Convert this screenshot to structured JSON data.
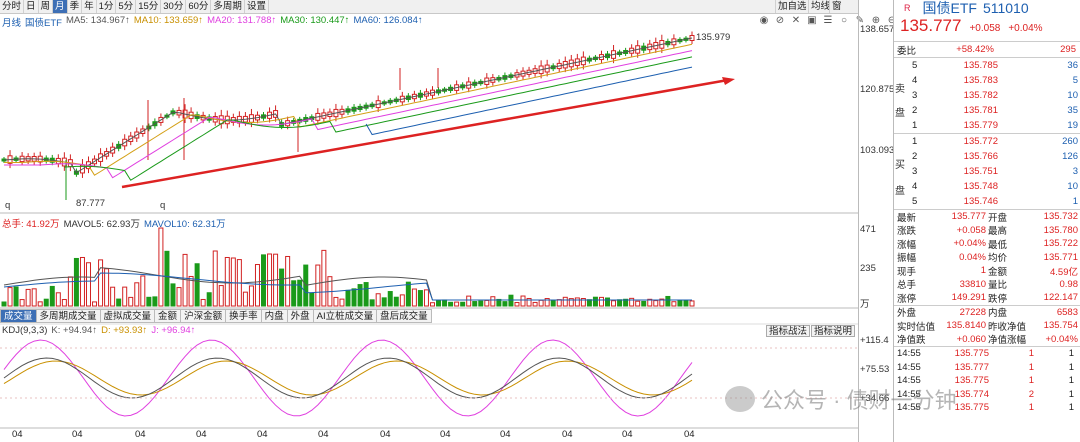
{
  "toolbar": {
    "items": [
      "分时",
      "日",
      "周",
      "月",
      "季",
      "年",
      "1分",
      "5分",
      "15分",
      "30分",
      "60分",
      "多周期",
      "设置"
    ],
    "active": "月",
    "right": [
      "加自选",
      "均线",
      "窗"
    ]
  },
  "ma": {
    "period": "月线",
    "name": "国债ETF",
    "ma5": "MA5: 134.967↑",
    "ma10": "MA10: 133.659↑",
    "ma20": "MA20: 131.788↑",
    "ma30": "MA30: 130.447↑",
    "ma60": "MA60: 126.084↑"
  },
  "price_axis": [
    "138.657",
    "120.875",
    "103.093"
  ],
  "annotations": {
    "high": "135.979",
    "low": "87.777",
    "q1": "q",
    "q2": "q"
  },
  "volume": {
    "total": "总手: 41.92万",
    "mavol5": "MAVOL5: 62.93万",
    "mavol10": "MAVOL10: 62.31万",
    "axis": [
      "471",
      "235",
      "万"
    ]
  },
  "tabs": [
    "成交量",
    "多周期成交量",
    "虚拟成交量",
    "金额",
    "沪深金额",
    "换手率",
    "内盘",
    "外盘",
    "AI立桩成交量",
    "盘后成交量"
  ],
  "kdj": {
    "label": "KDJ(9,3,3)",
    "k": "K: +94.94↑",
    "d": "D: +93.93↑",
    "j": "J: +96.94↑",
    "btn1": "指标战法",
    "btn2": "指标说明",
    "axis": [
      "+115.4",
      "+75.53",
      "+34.66"
    ]
  },
  "xaxis": [
    "04",
    "04",
    "04",
    "04",
    "04",
    "04",
    "04",
    "04",
    "04",
    "04",
    "04",
    "04"
  ],
  "quote": {
    "badge": "R",
    "name": "国债ETF",
    "code": "511010",
    "price": "135.777",
    "change": "+0.058",
    "pct": "+0.04%",
    "weibi_label": "委比",
    "weibi": "+58.42%",
    "weicha": "295"
  },
  "sell_label": [
    "卖",
    "盘"
  ],
  "buy_label": [
    "买",
    "盘"
  ],
  "sells": [
    {
      "lvl": "5",
      "price": "135.785",
      "vol": "36"
    },
    {
      "lvl": "4",
      "price": "135.783",
      "vol": "5"
    },
    {
      "lvl": "3",
      "price": "135.782",
      "vol": "10"
    },
    {
      "lvl": "2",
      "price": "135.781",
      "vol": "35"
    },
    {
      "lvl": "1",
      "price": "135.779",
      "vol": "19"
    }
  ],
  "buys": [
    {
      "lvl": "1",
      "price": "135.772",
      "vol": "260"
    },
    {
      "lvl": "2",
      "price": "135.766",
      "vol": "126"
    },
    {
      "lvl": "3",
      "price": "135.751",
      "vol": "3"
    },
    {
      "lvl": "4",
      "price": "135.748",
      "vol": "10"
    },
    {
      "lvl": "5",
      "price": "135.746",
      "vol": "1"
    }
  ],
  "stats": [
    {
      "l1": "最新",
      "v1": "135.777",
      "l2": "开盘",
      "v2": "135.732"
    },
    {
      "l1": "涨跌",
      "v1": "+0.058",
      "l2": "最高",
      "v2": "135.780"
    },
    {
      "l1": "涨幅",
      "v1": "+0.04%",
      "l2": "最低",
      "v2": "135.722"
    },
    {
      "l1": "振幅",
      "v1": "0.04%",
      "l2": "均价",
      "v2": "135.771"
    },
    {
      "l1": "现手",
      "v1": "1",
      "l2": "金额",
      "v2": "4.59亿"
    },
    {
      "l1": "总手",
      "v1": "33810",
      "l2": "量比",
      "v2": "0.98"
    },
    {
      "l1": "涨停",
      "v1": "149.291",
      "l2": "跌停",
      "v2": "122.147"
    }
  ],
  "stats2": [
    {
      "l1": "外盘",
      "v1": "27228",
      "l2": "内盘",
      "v2": "6583"
    },
    {
      "l1": "实时估值",
      "v1": "135.8140",
      "l2": "昨收净值",
      "v2": "135.754"
    },
    {
      "l1": "净值跌",
      "v1": "+0.060",
      "l2": "净值涨幅",
      "v2": "+0.04%"
    }
  ],
  "ticks": [
    {
      "t": "14:55",
      "p": "135.775",
      "v": "1",
      "n": "1"
    },
    {
      "t": "14:55",
      "p": "135.777",
      "v": "1",
      "n": "1"
    },
    {
      "t": "14:55",
      "p": "135.775",
      "v": "1",
      "n": "1"
    },
    {
      "t": "14:55",
      "p": "135.774",
      "v": "2",
      "n": "1"
    },
    {
      "t": "14:55",
      "p": "135.775",
      "v": "1",
      "n": "1"
    }
  ],
  "watermark": "公众号 · 债财一分钟",
  "colors": {
    "up": "#d22222",
    "down": "#1a9a1a",
    "ma5": "#555555",
    "ma10": "#d4a017",
    "ma20": "#e040e0",
    "ma30": "#1a9a1a",
    "ma60": "#1d5fb0"
  }
}
